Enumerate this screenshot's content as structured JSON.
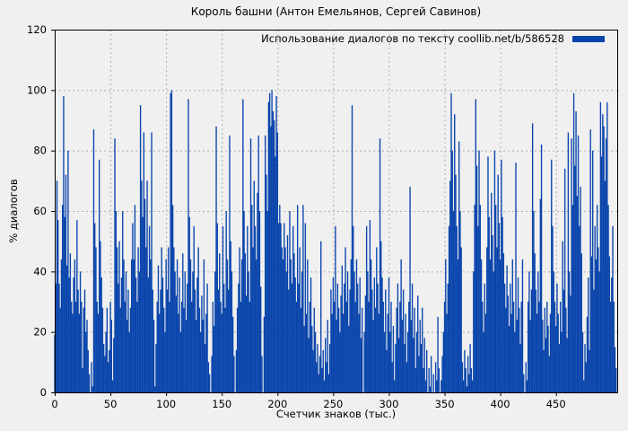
{
  "chart_data": {
    "type": "bar",
    "style": "impulses",
    "title": "Король башни (Антон Емельянов, Сергей Савинов)",
    "xlabel": "Счетчик знаков (тыс.)",
    "ylabel": "% диалогов",
    "legend": {
      "label": "Использование диалогов по тексту coollib.net/b/586528",
      "position": "top-right",
      "swatch_color": "#0a45ac"
    },
    "xlim": [
      0,
      505
    ],
    "ylim": [
      0,
      120
    ],
    "xticks": [
      0,
      50,
      100,
      150,
      200,
      250,
      300,
      350,
      400,
      450
    ],
    "yticks": [
      0,
      20,
      40,
      60,
      80,
      100,
      120
    ],
    "grid": true,
    "x_start": 0,
    "x_step": 1,
    "values": [
      19,
      36,
      70,
      57,
      36,
      28,
      44,
      62,
      98,
      58,
      72,
      42,
      80,
      38,
      46,
      30,
      26,
      38,
      44,
      30,
      57,
      34,
      26,
      40,
      30,
      8,
      28,
      34,
      20,
      24,
      14,
      6,
      0,
      10,
      2,
      87,
      56,
      48,
      30,
      26,
      77,
      50,
      38,
      28,
      16,
      12,
      20,
      28,
      10,
      14,
      30,
      24,
      4,
      18,
      84,
      60,
      48,
      36,
      50,
      28,
      38,
      60,
      44,
      30,
      40,
      24,
      34,
      20,
      28,
      44,
      56,
      44,
      62,
      38,
      30,
      48,
      40,
      95,
      70,
      58,
      86,
      64,
      48,
      70,
      38,
      55,
      44,
      86,
      34,
      24,
      2,
      16,
      30,
      42,
      26,
      34,
      48,
      38,
      28,
      20,
      44,
      34,
      48,
      30,
      99,
      100,
      62,
      48,
      40,
      32,
      44,
      26,
      38,
      20,
      30,
      46,
      28,
      40,
      24,
      36,
      97,
      58,
      44,
      30,
      40,
      55,
      34,
      24,
      38,
      48,
      28,
      20,
      32,
      24,
      44,
      16,
      26,
      36,
      10,
      6,
      0,
      12,
      30,
      22,
      40,
      88,
      56,
      34,
      46,
      30,
      26,
      55,
      36,
      28,
      60,
      44,
      34,
      85,
      50,
      40,
      25,
      12,
      0,
      14,
      28,
      36,
      48,
      30,
      44,
      97,
      60,
      46,
      32,
      55,
      40,
      30,
      84,
      62,
      48,
      70,
      55,
      44,
      66,
      85,
      60,
      35,
      12,
      0,
      25,
      85,
      72,
      60,
      96,
      99,
      88,
      100,
      93,
      90,
      78,
      98,
      86,
      56,
      62,
      56,
      48,
      44,
      56,
      48,
      40,
      52,
      34,
      60,
      44,
      36,
      55,
      46,
      38,
      30,
      62,
      36,
      48,
      28,
      40,
      62,
      22,
      56,
      26,
      44,
      18,
      30,
      38,
      22,
      14,
      28,
      20,
      10,
      16,
      6,
      12,
      50,
      8,
      14,
      4,
      18,
      10,
      24,
      6,
      16,
      34,
      26,
      38,
      30,
      55,
      24,
      36,
      28,
      20,
      32,
      42,
      26,
      36,
      48,
      30,
      40,
      22,
      34,
      44,
      95,
      55,
      40,
      30,
      44,
      36,
      26,
      38,
      18,
      28,
      0,
      20,
      32,
      55,
      40,
      30,
      57,
      44,
      34,
      24,
      38,
      28,
      48,
      36,
      26,
      84,
      50,
      38,
      30,
      20,
      34,
      14,
      26,
      38,
      20,
      30,
      10,
      22,
      4,
      16,
      28,
      36,
      18,
      30,
      44,
      24,
      34,
      16,
      26,
      10,
      20,
      30,
      68,
      24,
      36,
      18,
      28,
      8,
      20,
      32,
      12,
      24,
      16,
      28,
      8,
      18,
      4,
      14,
      0,
      8,
      2,
      12,
      0,
      6,
      0,
      10,
      4,
      25,
      8,
      0,
      4,
      12,
      20,
      30,
      44,
      26,
      36,
      55,
      70,
      99,
      80,
      60,
      92,
      72,
      55,
      44,
      83,
      60,
      48,
      10,
      4,
      14,
      8,
      2,
      12,
      6,
      16,
      8,
      4,
      40,
      62,
      97,
      75,
      55,
      80,
      62,
      44,
      30,
      20,
      36,
      26,
      48,
      78,
      58,
      44,
      66,
      52,
      40,
      80,
      62,
      48,
      72,
      56,
      44,
      77,
      58,
      46,
      36,
      28,
      42,
      32,
      22,
      36,
      26,
      44,
      30,
      20,
      76,
      24,
      38,
      28,
      16,
      30,
      44,
      6,
      0,
      10,
      4,
      30,
      40,
      24,
      34,
      89,
      60,
      46,
      34,
      26,
      40,
      30,
      64,
      82,
      24,
      14,
      28,
      18,
      30,
      22,
      12,
      26,
      77,
      55,
      40,
      30,
      22,
      36,
      26,
      16,
      30,
      20,
      50,
      34,
      74,
      28,
      18,
      86,
      40,
      32,
      84,
      62,
      99,
      75,
      93,
      65,
      85,
      55,
      68,
      46,
      20,
      4,
      16,
      10,
      25,
      38,
      14,
      87,
      45,
      80,
      34,
      55,
      44,
      62,
      48,
      40,
      96,
      78,
      92,
      88,
      70,
      84,
      96,
      62,
      45,
      30,
      38,
      55,
      30,
      15,
      8
    ],
    "colors": {
      "bar": "#0a45ac",
      "grid": "#adadad",
      "axis": "#000000",
      "background": "#f0f0f0",
      "text": "#000000"
    }
  }
}
